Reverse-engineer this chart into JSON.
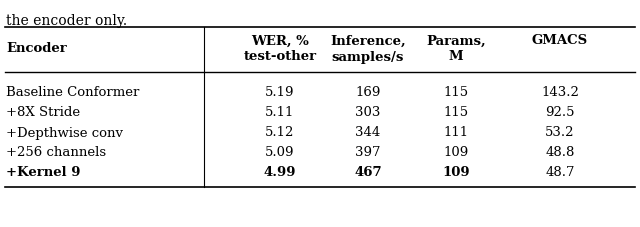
{
  "caption_text": "the encoder only.",
  "header_line1": [
    "WER, %",
    "Inference,",
    "Params,",
    "GMACS"
  ],
  "header_line2": [
    "test-other",
    "samples/s",
    "M",
    ""
  ],
  "rows": [
    [
      "Baseline Conformer",
      "5.19",
      "169",
      "115",
      "143.2"
    ],
    [
      "+8X Stride",
      "5.11",
      "303",
      "115",
      "92.5"
    ],
    [
      "+Depthwise conv",
      "5.12",
      "344",
      "111",
      "53.2"
    ],
    [
      "+256 channels",
      "5.09",
      "397",
      "109",
      "48.8"
    ],
    [
      "+Kernel 9",
      "4.99",
      "467",
      "109",
      "48.7"
    ]
  ],
  "last_row_bold_cols": [
    0,
    1,
    2,
    3
  ],
  "font_size": 9.5,
  "bg_color": "#ffffff",
  "text_color": "#000000",
  "figsize": [
    6.4,
    2.28
  ],
  "dpi": 100
}
